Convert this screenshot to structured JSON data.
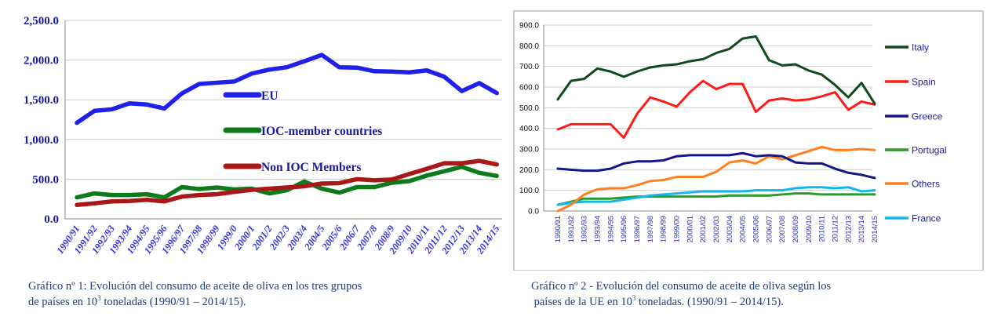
{
  "chart_data": [
    {
      "type": "line",
      "title": "",
      "xlabel": "",
      "ylabel": "",
      "ylim": [
        0,
        2500
      ],
      "yticks": [
        "0.0",
        "500.0",
        "1,000.0",
        "1,500.0",
        "2,000.0",
        "2,500.0"
      ],
      "grid": true,
      "legend": "inline-center",
      "categories": [
        "1990/91",
        "1991/92",
        "1992/93",
        "1993/94",
        "1994/95",
        "1995/96",
        "1996/97",
        "1997/98",
        "1998/99",
        "1999/0",
        "2000/1",
        "2001/2",
        "2002/3",
        "2003/4",
        "2004/5",
        "2005/6",
        "2006/7",
        "2007/8",
        "2008/9",
        "2009/10",
        "2010/11",
        "2011/12",
        "2012/13",
        "2013/14",
        "2014/15"
      ],
      "series": [
        {
          "name": "EU",
          "color": "#2020e8",
          "values": [
            1210,
            1360,
            1380,
            1455,
            1440,
            1390,
            1580,
            1700,
            1715,
            1730,
            1830,
            1880,
            1910,
            1985,
            2065,
            1910,
            1905,
            1860,
            1855,
            1845,
            1870,
            1790,
            1610,
            1710,
            1585
          ]
        },
        {
          "name": "IOC-member countries",
          "color": "#0d7a1c",
          "values": [
            270,
            320,
            300,
            300,
            310,
            270,
            400,
            375,
            395,
            370,
            380,
            320,
            360,
            470,
            380,
            330,
            400,
            400,
            455,
            475,
            545,
            600,
            655,
            580,
            540
          ]
        },
        {
          "name": "Non IOC Members",
          "color": "#a81818",
          "values": [
            175,
            195,
            220,
            225,
            240,
            220,
            280,
            300,
            310,
            340,
            365,
            380,
            395,
            410,
            445,
            450,
            500,
            485,
            495,
            565,
            630,
            700,
            700,
            730,
            685
          ]
        }
      ]
    },
    {
      "type": "line",
      "title": "",
      "xlabel": "",
      "ylabel": "",
      "ylim": [
        0,
        900
      ],
      "yticks": [
        "0.0",
        "100.0",
        "200.0",
        "300.0",
        "400.0",
        "500.0",
        "600.0",
        "700.0",
        "800.0",
        "900.0"
      ],
      "grid": true,
      "legend": "right",
      "categories": [
        "1990/91",
        "1991/92",
        "1992/93",
        "1993/94",
        "1994/95",
        "1995/96",
        "1996/97",
        "1997/98",
        "1998/99",
        "1999/00",
        "2000/01",
        "2001/02",
        "2002/03",
        "2003/04",
        "2004/05",
        "2005/06",
        "2006/07",
        "2007/08",
        "2008/09",
        "2009/10",
        "2010/11",
        "2011/12",
        "2012/13",
        "2013/14",
        "2014/15"
      ],
      "series": [
        {
          "name": "Italy",
          "color": "#0f4a1a",
          "values": [
            540,
            630,
            640,
            690,
            675,
            650,
            675,
            695,
            705,
            710,
            725,
            735,
            765,
            785,
            835,
            845,
            730,
            705,
            710,
            680,
            660,
            610,
            550,
            620,
            520
          ]
        },
        {
          "name": "Spain",
          "color": "#ff1a1a",
          "values": [
            395,
            420,
            420,
            420,
            420,
            355,
            470,
            550,
            530,
            505,
            575,
            630,
            590,
            615,
            615,
            480,
            535,
            545,
            535,
            540,
            555,
            575,
            490,
            530,
            515
          ]
        },
        {
          "name": "Greece",
          "color": "#16168a",
          "values": [
            205,
            200,
            195,
            195,
            205,
            230,
            240,
            240,
            245,
            265,
            270,
            270,
            270,
            270,
            280,
            265,
            270,
            265,
            235,
            230,
            230,
            205,
            185,
            175,
            160
          ]
        },
        {
          "name": "Portugal",
          "color": "#2a9a2a",
          "values": [
            30,
            45,
            60,
            60,
            60,
            65,
            70,
            70,
            70,
            70,
            70,
            70,
            70,
            75,
            75,
            75,
            75,
            80,
            85,
            85,
            80,
            80,
            80,
            80,
            80
          ]
        },
        {
          "name": "Others",
          "color": "#ff8020",
          "values": [
            0,
            30,
            80,
            105,
            110,
            110,
            125,
            145,
            150,
            165,
            165,
            165,
            190,
            235,
            245,
            230,
            265,
            250,
            270,
            290,
            310,
            295,
            295,
            300,
            295
          ]
        },
        {
          "name": "France",
          "color": "#12b8ec",
          "values": [
            30,
            40,
            45,
            45,
            45,
            55,
            65,
            75,
            80,
            85,
            90,
            95,
            95,
            95,
            95,
            100,
            100,
            100,
            110,
            115,
            115,
            110,
            115,
            95,
            100
          ]
        }
      ]
    }
  ],
  "captions": {
    "left": {
      "line1": "Gráfico nº 1: Evolución del consumo de aceite de oliva en los tres grupos",
      "line2_a": "de países en 10",
      "line2_sup": "3",
      "line2_b": " toneladas  (1990/91 – 2014/15)."
    },
    "right": {
      "line1": "Gráfico nº 2  - Evolución del consumo de aceite de oliva según los",
      "line2_a": " países de la UE en 10",
      "line2_sup": "3",
      "line2_b": " toneladas. (1990/91 – 2014/15)."
    }
  }
}
